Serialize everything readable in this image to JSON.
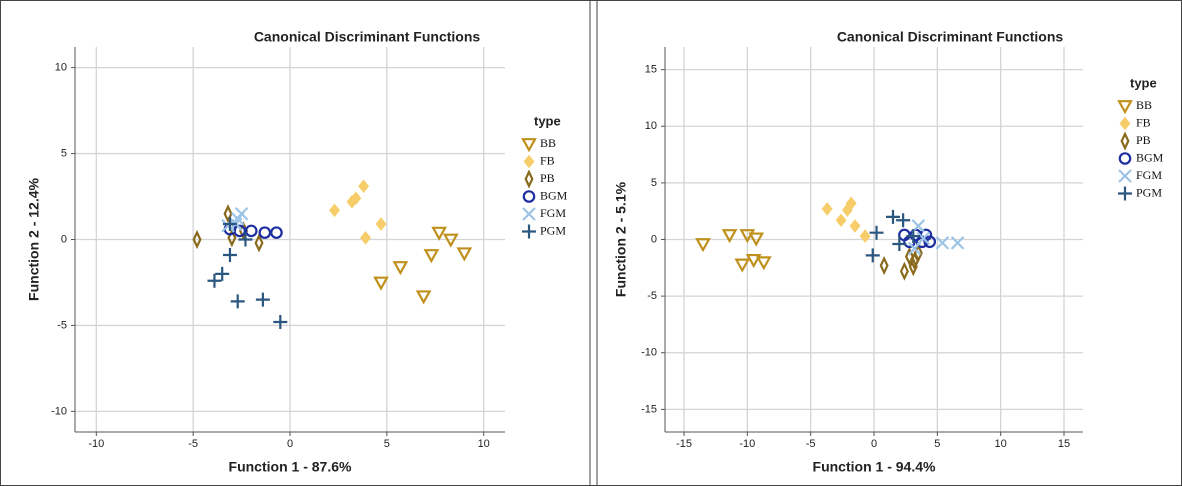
{
  "chart_data": [
    {
      "type": "scatter",
      "title": "Canonical Discriminant Functions",
      "x_label": "Function 1 - 87.6%",
      "y_label": "Function 2 - 12.4%",
      "legend_title": "type",
      "grid": true,
      "xlim": [
        -11.1,
        11.1
      ],
      "ylim": [
        -11.2,
        11.2
      ],
      "xticks": [
        -10,
        -5,
        0,
        5,
        10
      ],
      "yticks": [
        -10,
        -5,
        0,
        5,
        10
      ],
      "series": [
        {
          "name": "BB",
          "color": "#c0901c",
          "marker": "triangle-down",
          "x": [
            7.7,
            8.3,
            9.0,
            7.3,
            5.7,
            4.7,
            6.9
          ],
          "values": [
            0.4,
            0,
            -0.8,
            -0.9,
            -1.6,
            -2.5,
            -3.3
          ]
        },
        {
          "name": "FB",
          "color": "#f7cd6a",
          "marker": "diamond-filled",
          "x": [
            3.8,
            3.4,
            3.2,
            2.3,
            4.7,
            3.9
          ],
          "values": [
            3.1,
            2.4,
            2.2,
            1.7,
            0.9,
            0.1
          ]
        },
        {
          "name": "PB",
          "color": "#8a6a1c",
          "marker": "diamond",
          "x": [
            -4.8,
            -3.2,
            -3.0,
            -1.6,
            -2.4
          ],
          "values": [
            0,
            1.5,
            0.1,
            -0.2,
            0.5
          ]
        },
        {
          "name": "BGM",
          "color": "#1d2ea0",
          "marker": "circle",
          "x": [
            -2.0,
            -1.3,
            -0.7,
            -2.6,
            -3.1
          ],
          "values": [
            0.5,
            0.4,
            0.4,
            0.5,
            0.6
          ]
        },
        {
          "name": "FGM",
          "color": "#9dc3e6",
          "marker": "cross",
          "x": [
            -2.5,
            -2.8,
            -3.2,
            -2.7
          ],
          "values": [
            1.5,
            0.9,
            0.8,
            1.2
          ]
        },
        {
          "name": "PGM",
          "color": "#2b5680",
          "marker": "plus",
          "x": [
            -3.9,
            -3.5,
            -3.1,
            -2.7,
            -1.4,
            -0.5,
            -2.3,
            -3.1
          ],
          "values": [
            -2.4,
            -2.0,
            -0.9,
            -3.6,
            -3.5,
            -4.8,
            0,
            0.9
          ]
        }
      ]
    },
    {
      "type": "scatter",
      "title": "Canonical Discriminant Functions",
      "x_label": "Function 1 - 94.4%",
      "y_label": "Function 2 - 5.1%",
      "legend_title": "type",
      "grid": true,
      "xlim": [
        -16.5,
        16.5
      ],
      "ylim": [
        -17,
        17
      ],
      "xticks": [
        -15,
        -10,
        -5,
        0,
        5,
        10,
        15
      ],
      "yticks": [
        -15,
        -10,
        -5,
        0,
        5,
        10,
        15
      ],
      "series": [
        {
          "name": "BB",
          "color": "#c0901c",
          "marker": "triangle-down",
          "x": [
            -13.5,
            -11.4,
            -10,
            -9.3,
            -10.4,
            -9.5,
            -8.7
          ],
          "values": [
            -0.4,
            0.4,
            0.4,
            0.1,
            -2.2,
            -1.8,
            -2.0
          ]
        },
        {
          "name": "FB",
          "color": "#f7cd6a",
          "marker": "diamond-filled",
          "x": [
            -3.7,
            -1.8,
            -2.1,
            -2.6,
            -1.5,
            -0.7
          ],
          "values": [
            2.7,
            3.2,
            2.6,
            1.7,
            1.2,
            0.3
          ]
        },
        {
          "name": "PB",
          "color": "#8a6a1c",
          "marker": "diamond",
          "x": [
            0.8,
            2.4,
            3.1,
            2.8,
            3.5,
            3.2
          ],
          "values": [
            -2.3,
            -2.8,
            -2.4,
            -1.5,
            -1.2,
            -1.9
          ]
        },
        {
          "name": "BGM",
          "color": "#1d2ea0",
          "marker": "circle",
          "x": [
            2.4,
            3.3,
            4.1,
            4.4,
            3.8,
            2.8
          ],
          "values": [
            0.4,
            0.4,
            0.4,
            -0.2,
            -0.2,
            -0.2
          ]
        },
        {
          "name": "FGM",
          "color": "#9dc3e6",
          "marker": "cross",
          "x": [
            3.5,
            3.9,
            5.4,
            6.6,
            3.2
          ],
          "values": [
            1.2,
            0.1,
            -0.3,
            -0.3,
            -0.8
          ]
        },
        {
          "name": "PGM",
          "color": "#2b5680",
          "marker": "plus",
          "x": [
            1.5,
            2.3,
            0.2,
            -0.1,
            2.0,
            3.1
          ],
          "values": [
            2.0,
            1.7,
            0.6,
            -1.4,
            -0.4,
            0.3
          ]
        }
      ]
    }
  ]
}
